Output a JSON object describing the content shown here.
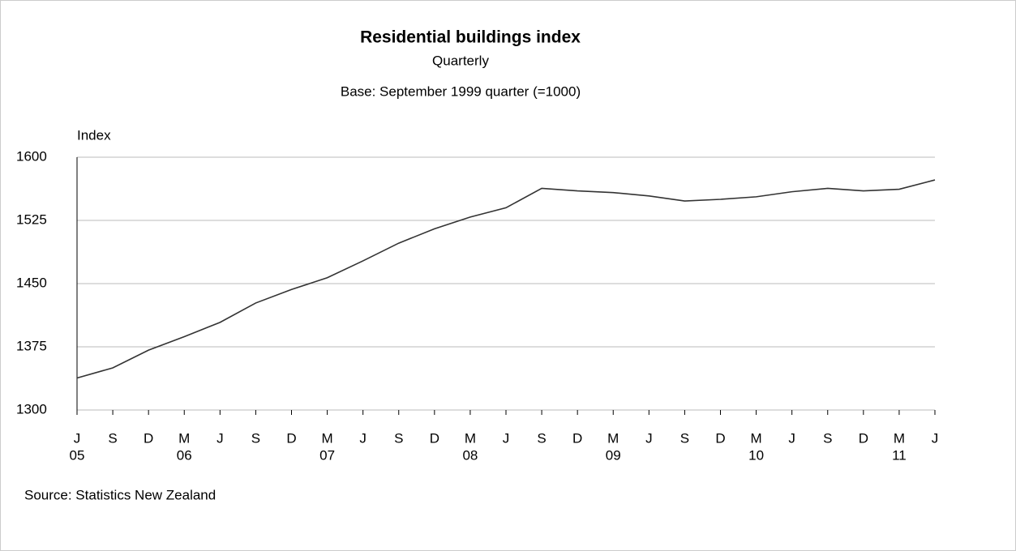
{
  "chart_data": {
    "type": "line",
    "title": "Residential buildings index",
    "subtitle": "Quarterly",
    "note": "Base: September 1999 quarter (=1000)",
    "y_label": "Index",
    "source": "Source: Statistics New Zealand",
    "categories": [
      "J",
      "S",
      "D",
      "M",
      "J",
      "S",
      "D",
      "M",
      "J",
      "S",
      "D",
      "M",
      "J",
      "S",
      "D",
      "M",
      "J",
      "S",
      "D",
      "M",
      "J",
      "S",
      "D",
      "M",
      "J"
    ],
    "year_labels": [
      "05",
      null,
      null,
      "06",
      null,
      null,
      null,
      "07",
      null,
      null,
      null,
      "08",
      null,
      null,
      null,
      "09",
      null,
      null,
      null,
      "10",
      null,
      null,
      null,
      "11",
      null
    ],
    "series": [
      {
        "name": "Index",
        "color": "#333333",
        "values": [
          1338,
          1350,
          1371,
          1387,
          1404,
          1427,
          1443,
          1457,
          1477,
          1498,
          1515,
          1529,
          1540,
          1563,
          1560,
          1558,
          1554,
          1548,
          1550,
          1553,
          1559,
          1563,
          1560,
          1562,
          1573
        ]
      }
    ],
    "ylim": [
      1300,
      1600
    ],
    "yticks": [
      1300,
      1375,
      1450,
      1525,
      1600
    ],
    "grid": true
  }
}
